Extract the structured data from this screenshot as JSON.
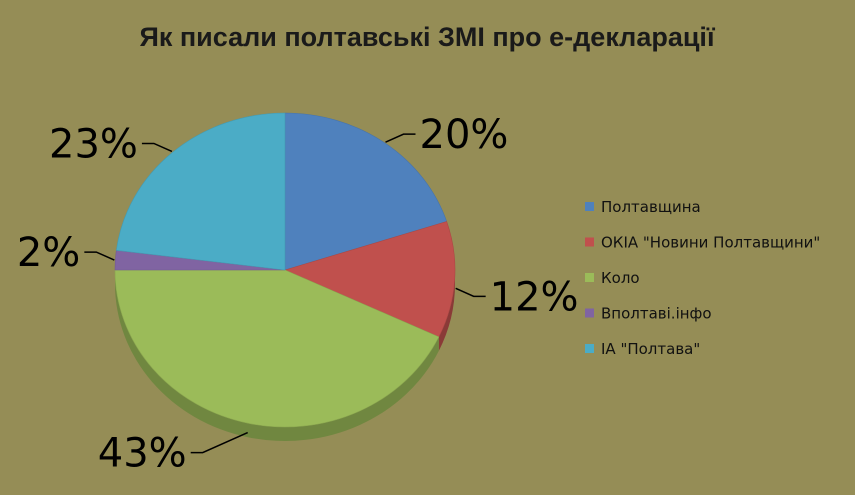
{
  "chart_data": {
    "type": "pie",
    "title": "Як писали полтавські ЗМІ про е-декларації",
    "categories": [
      "Полтавщина",
      "ОКІА \"Новини Полтавщини\"",
      "Коло",
      "Вполтаві.інфо",
      "ІА \"Полтава\""
    ],
    "values": [
      20,
      12,
      43,
      2,
      23
    ],
    "data_labels": [
      "20%",
      "12%",
      "43%",
      "2%",
      "23%"
    ],
    "colors": [
      "#4f81bd",
      "#c0504d",
      "#9bbb59",
      "#8064a2",
      "#4bacc6"
    ],
    "legend_position": "right",
    "start_angle": "12 o'clock",
    "direction": "clockwise",
    "style": "3d"
  }
}
